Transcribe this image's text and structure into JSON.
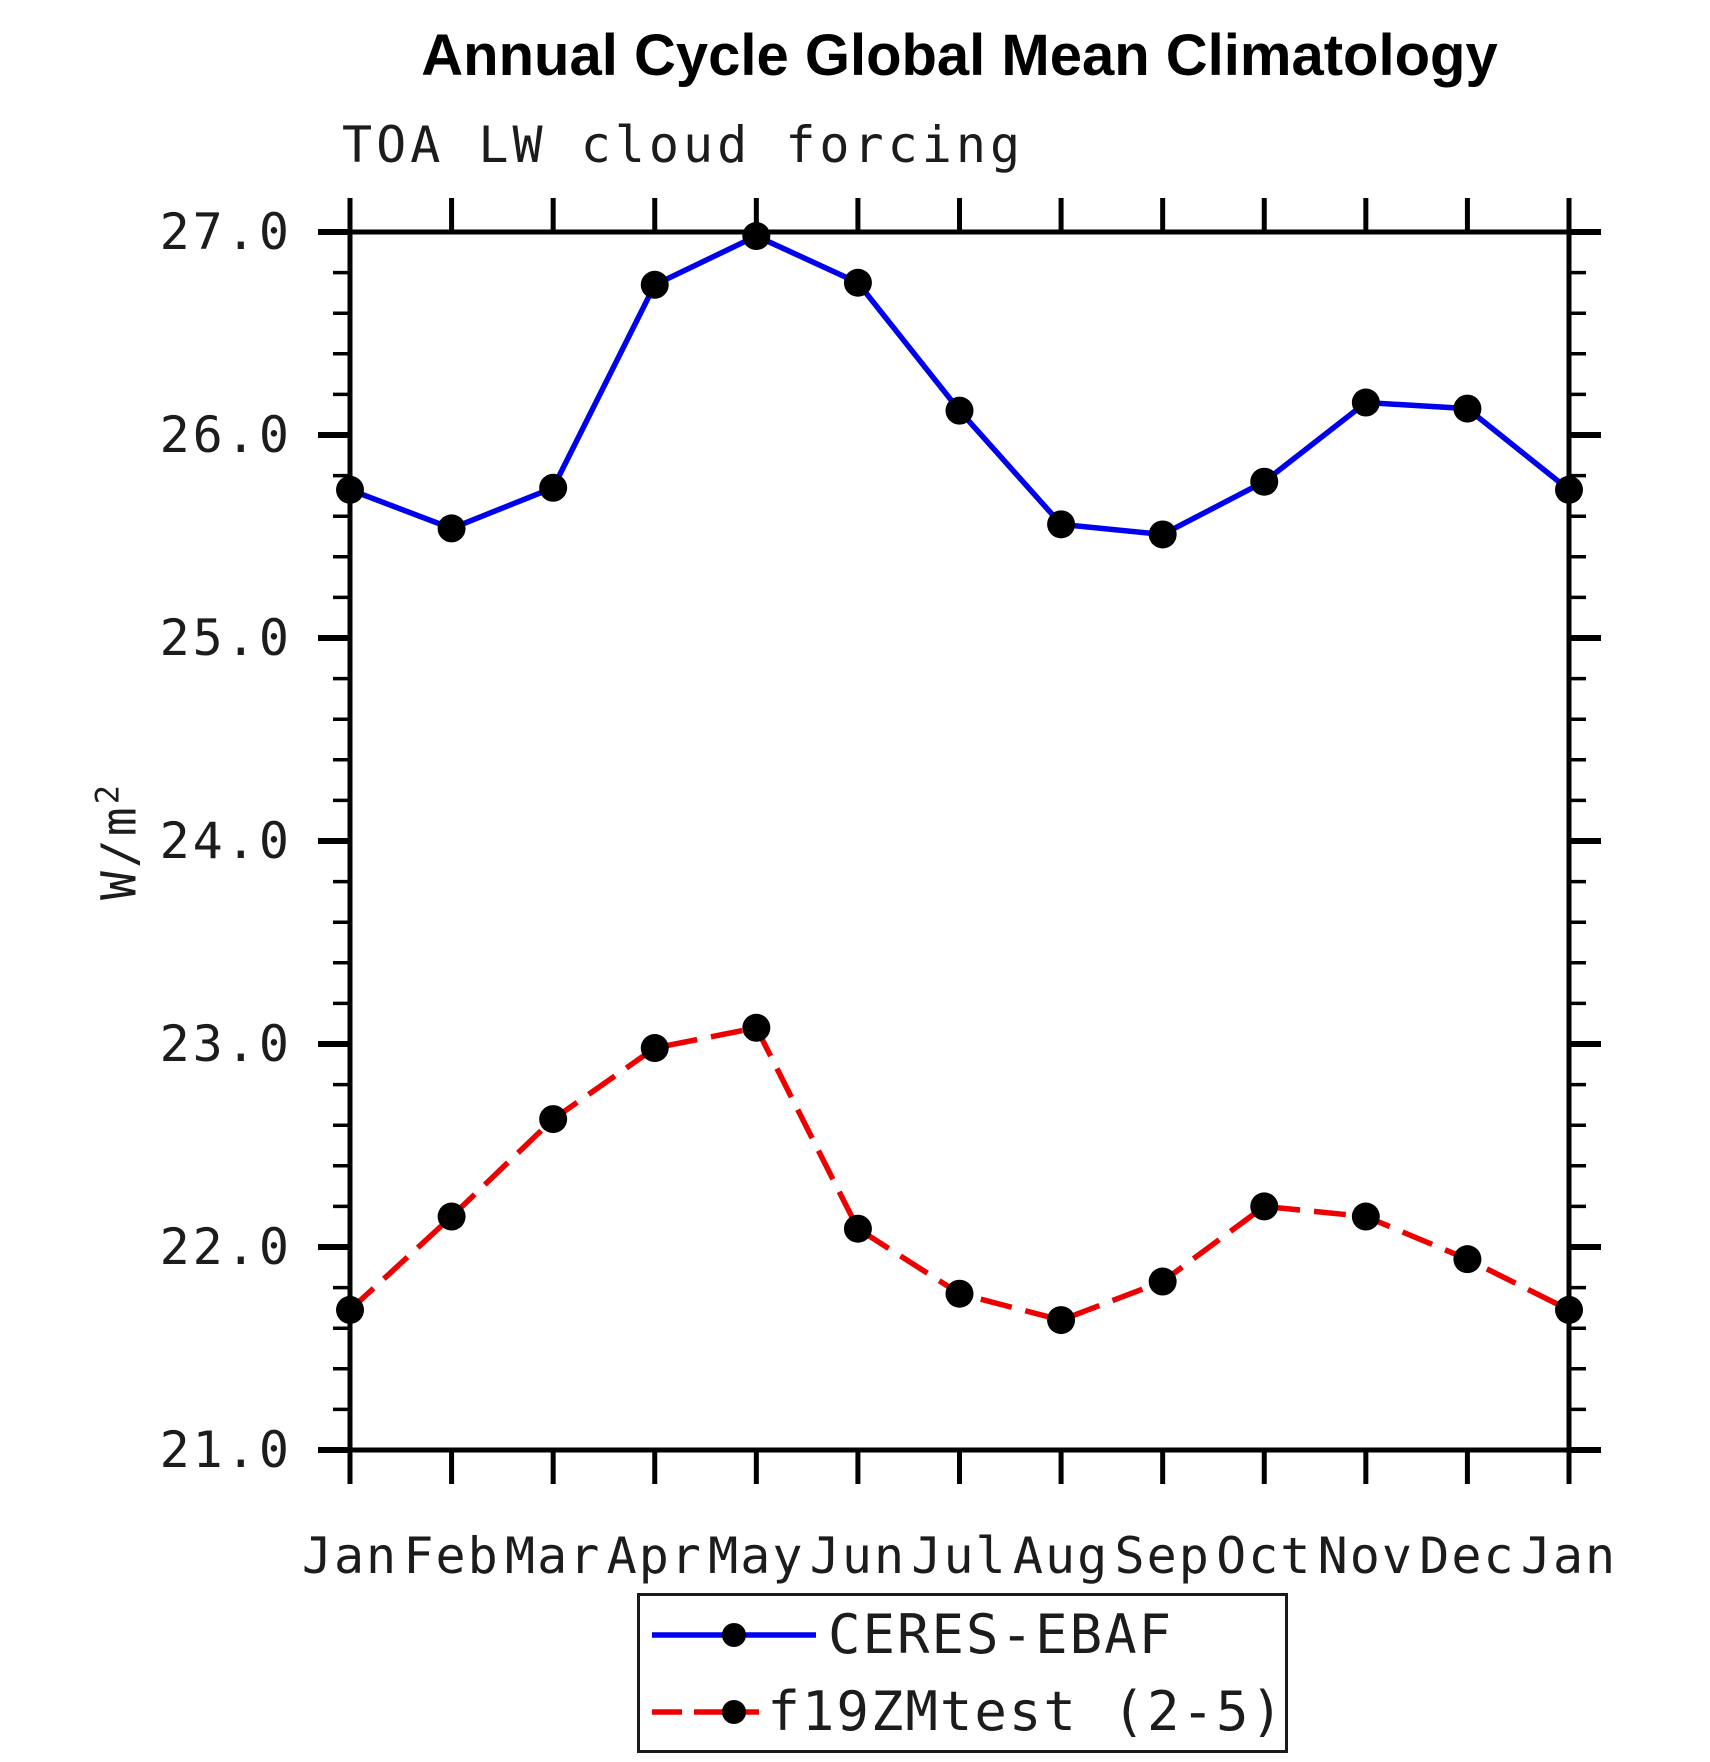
{
  "page": {
    "background_color": "#ffffff",
    "text_color": "#1c1c1c"
  },
  "chart_data": {
    "type": "line",
    "title": "Annual Cycle Global Mean Climatology",
    "subtitle": "TOA LW cloud forcing",
    "xlabel": "",
    "ylabel": "W/m²",
    "ylabel_base": "W/m",
    "ylabel_sup": "2",
    "categories": [
      "Jan",
      "Feb",
      "Mar",
      "Apr",
      "May",
      "Jun",
      "Jul",
      "Aug",
      "Sep",
      "Oct",
      "Nov",
      "Dec",
      "Jan"
    ],
    "ylim": [
      21.0,
      27.0
    ],
    "ytick_major": 1.0,
    "ytick_minor": 0.2,
    "ytick_labels": [
      "27.0",
      "26.0",
      "25.0",
      "24.0",
      "23.0",
      "22.0",
      "21.0"
    ],
    "grid": false,
    "frame_color": "#000000",
    "marker_color": "#000000",
    "series": [
      {
        "name": "CERES-EBAF",
        "color": "#0000ee",
        "line_style": "solid",
        "marker": "filled-circle",
        "values": [
          25.73,
          25.54,
          25.74,
          26.74,
          26.98,
          26.75,
          26.12,
          25.56,
          25.51,
          25.77,
          26.16,
          26.13,
          25.73
        ]
      },
      {
        "name": "f19ZMtest (2-5)",
        "color": "#ee0000",
        "line_style": "dashed",
        "marker": "filled-circle",
        "values": [
          21.69,
          22.15,
          22.63,
          22.98,
          23.08,
          22.09,
          21.77,
          21.64,
          21.83,
          22.2,
          22.15,
          21.94,
          21.69
        ]
      }
    ],
    "legend": {
      "position": "bottom-center",
      "entries": [
        "CERES-EBAF",
        "f19ZMtest (2-5)"
      ]
    }
  }
}
